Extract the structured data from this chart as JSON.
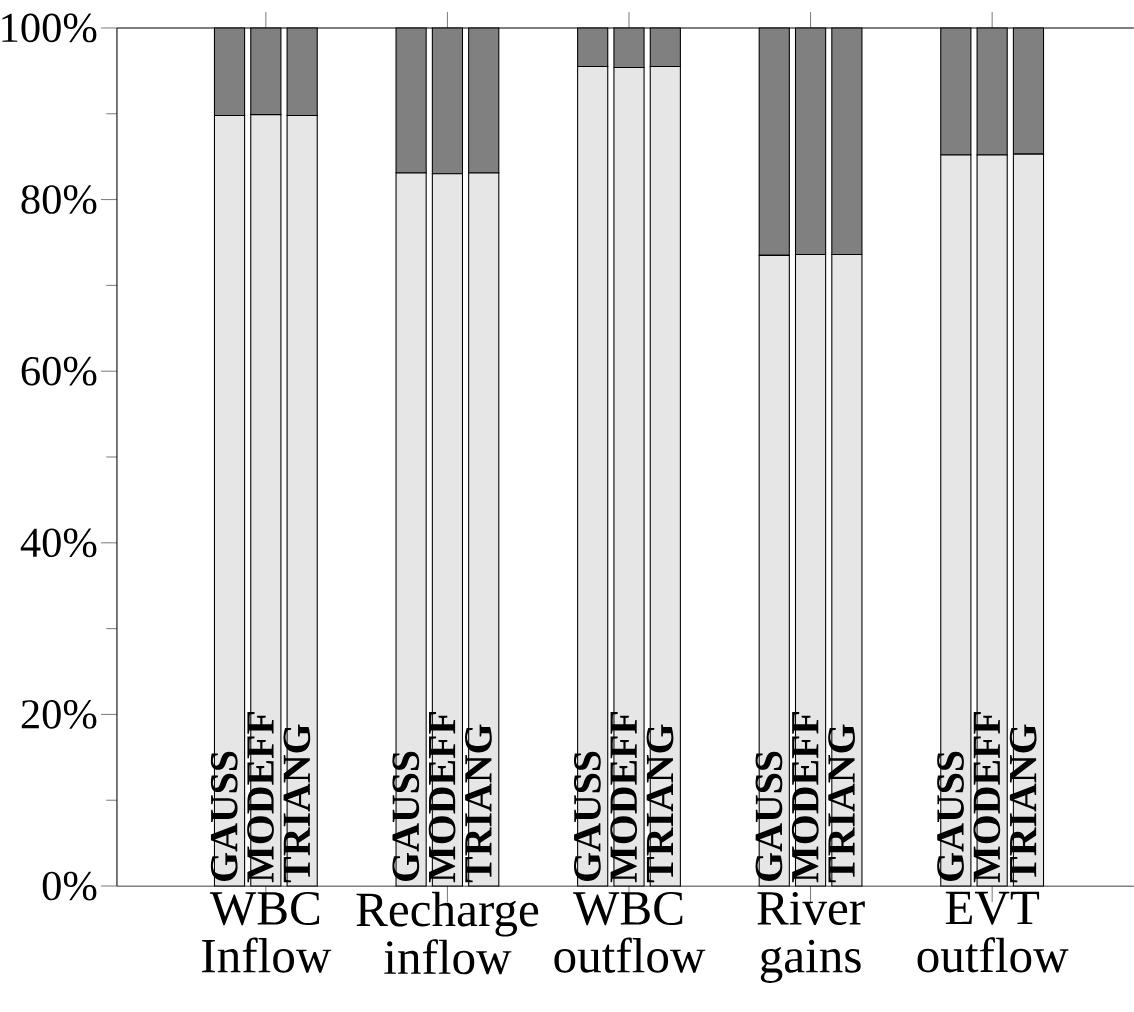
{
  "chart_data": {
    "type": "bar",
    "stacked": true,
    "categories": [
      "GAUSS",
      "MODEFF",
      "TRIANG",
      null,
      null,
      "GAUSS",
      "MODEFF",
      "TRIANG",
      null,
      null,
      "GAUSS",
      "MODEFF",
      "TRIANG",
      null,
      null,
      "GAUSS",
      "MODEFF",
      "TRIANG",
      null,
      null,
      "GAUSS",
      "MODEFF",
      "TRIANG"
    ],
    "series": [
      {
        "color": "#e6e6e6",
        "values": [
          89.8,
          89.9,
          89.8,
          null,
          null,
          83.1,
          83.0,
          83.1,
          null,
          null,
          95.5,
          95.4,
          95.5,
          null,
          null,
          73.5,
          73.6,
          73.6,
          null,
          null,
          85.2,
          85.2,
          85.3
        ]
      },
      {
        "color": "#808080",
        "values": [
          10.2,
          10.1,
          10.2,
          null,
          null,
          16.9,
          17.0,
          16.9,
          null,
          null,
          4.5,
          4.6,
          4.5,
          null,
          null,
          26.5,
          26.4,
          26.4,
          null,
          null,
          14.8,
          14.8,
          14.7
        ]
      }
    ],
    "ylim": [
      0,
      100
    ],
    "yticks": [
      {
        "value": 0,
        "label": "0%"
      },
      {
        "value": 20,
        "label": "20%"
      },
      {
        "value": 40,
        "label": "40%"
      },
      {
        "value": 60,
        "label": "60%"
      },
      {
        "value": 80,
        "label": "80%"
      },
      {
        "value": 100,
        "label": "100%"
      }
    ],
    "annotations": [
      "WBC Inflow",
      "Recharge inflow",
      "WBC outflow",
      "River gains",
      "EVT outflow"
    ]
  }
}
